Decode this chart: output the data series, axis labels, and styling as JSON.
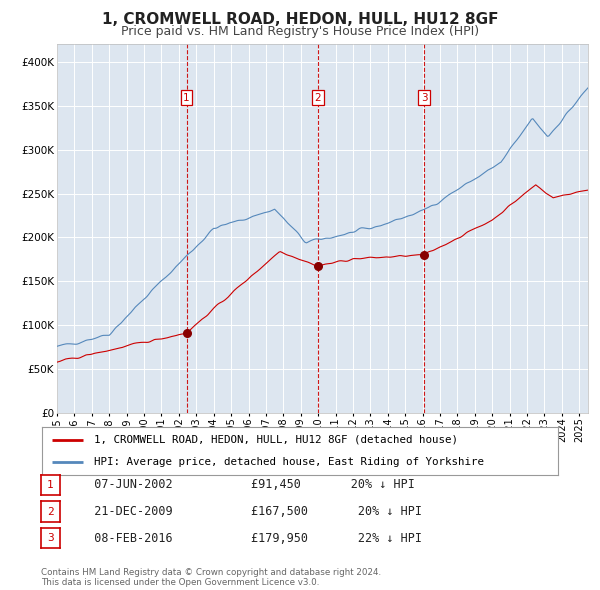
{
  "title": "1, CROMWELL ROAD, HEDON, HULL, HU12 8GF",
  "subtitle": "Price paid vs. HM Land Registry's House Price Index (HPI)",
  "title_fontsize": 11,
  "subtitle_fontsize": 9,
  "background_color": "#ffffff",
  "plot_bg_color": "#dde6f0",
  "grid_color": "#ffffff",
  "red_line_color": "#cc0000",
  "blue_line_color": "#5588bb",
  "sale_dot_color": "#880000",
  "vline_color": "#cc0000",
  "ylim": [
    0,
    420000
  ],
  "ytick_values": [
    0,
    50000,
    100000,
    150000,
    200000,
    250000,
    300000,
    350000,
    400000
  ],
  "ytick_labels": [
    "£0",
    "£50K",
    "£100K",
    "£150K",
    "£200K",
    "£250K",
    "£300K",
    "£350K",
    "£400K"
  ],
  "xlim_start": 1995.0,
  "xlim_end": 2025.5,
  "xtick_years": [
    1995,
    1996,
    1997,
    1998,
    1999,
    2000,
    2001,
    2002,
    2003,
    2004,
    2005,
    2006,
    2007,
    2008,
    2009,
    2010,
    2011,
    2012,
    2013,
    2014,
    2015,
    2016,
    2017,
    2018,
    2019,
    2020,
    2021,
    2022,
    2023,
    2024,
    2025
  ],
  "sale_dates": [
    2002.44,
    2009.97,
    2016.1
  ],
  "sale_prices": [
    91450,
    167500,
    179950
  ],
  "sale_labels": [
    "1",
    "2",
    "3"
  ],
  "legend_red_label": "1, CROMWELL ROAD, HEDON, HULL, HU12 8GF (detached house)",
  "legend_blue_label": "HPI: Average price, detached house, East Riding of Yorkshire",
  "table_rows": [
    {
      "num": "1",
      "date": "07-JUN-2002",
      "price": "£91,450",
      "hpi": "20% ↓ HPI"
    },
    {
      "num": "2",
      "date": "21-DEC-2009",
      "price": "£167,500",
      "hpi": "20% ↓ HPI"
    },
    {
      "num": "3",
      "date": "08-FEB-2016",
      "price": "£179,950",
      "hpi": "22% ↓ HPI"
    }
  ],
  "footnote1": "Contains HM Land Registry data © Crown copyright and database right 2024.",
  "footnote2": "This data is licensed under the Open Government Licence v3.0."
}
